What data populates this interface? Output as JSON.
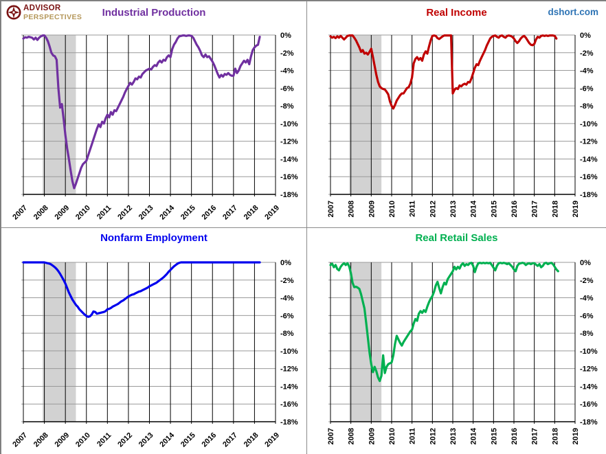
{
  "page": {
    "brand": {
      "line1": "ADVISOR",
      "line2": "PERSPECTIVES"
    },
    "watermark": "dshort.com"
  },
  "colors": {
    "industrial_production": "#7030A0",
    "real_income": "#C00000",
    "nonfarm_employment": "#0000EE",
    "real_retail_sales": "#00B050",
    "recession_band": "#D2D2D2",
    "h_gridline": "#999999",
    "v_gridline": "#000000",
    "watermark_blue": "#2E74B5",
    "logo_maroon": "#7A1212",
    "logo_gold": "#B5975A"
  },
  "chart_data": [
    {
      "type": "line",
      "title": "Industrial Production",
      "color": "#7030A0",
      "x_start": 2007,
      "x_step_months": 1,
      "x_ticks": [
        2007,
        2008,
        2009,
        2010,
        2011,
        2012,
        2013,
        2014,
        2015,
        2016,
        2017,
        2018,
        2019
      ],
      "xlim": [
        2007,
        2019
      ],
      "ylim": [
        -18,
        0
      ],
      "y_tick_labels": [
        "0%",
        "-2%",
        "-4%",
        "-6%",
        "-8%",
        "-10%",
        "-12%",
        "-14%",
        "-16%",
        "-18%"
      ],
      "x_label_rotation": 45,
      "grid": true,
      "recession_band": {
        "from": 2007.917,
        "to": 2009.5
      },
      "values": [
        -0.4,
        -0.25,
        -0.3,
        -0.2,
        -0.25,
        -0.3,
        -0.5,
        -0.3,
        -0.55,
        -0.3,
        -0.15,
        -0.05,
        -0.05,
        -0.3,
        -0.7,
        -1.3,
        -2.0,
        -2.3,
        -2.4,
        -2.8,
        -6.0,
        -8.2,
        -7.8,
        -9.5,
        -11.3,
        -12.8,
        -14.0,
        -15.3,
        -16.5,
        -17.3,
        -16.8,
        -16.2,
        -15.6,
        -15.0,
        -14.6,
        -14.4,
        -14.2,
        -13.6,
        -13.0,
        -12.4,
        -11.8,
        -11.2,
        -10.6,
        -10.1,
        -10.4,
        -9.8,
        -10.0,
        -9.4,
        -9.0,
        -9.3,
        -8.7,
        -9.0,
        -8.5,
        -8.6,
        -8.2,
        -7.8,
        -7.4,
        -7.0,
        -6.5,
        -6.1,
        -5.75,
        -5.4,
        -5.6,
        -5.3,
        -4.9,
        -5.0,
        -4.7,
        -4.8,
        -4.4,
        -4.2,
        -4.0,
        -3.9,
        -3.8,
        -3.9,
        -3.6,
        -3.4,
        -3.5,
        -3.1,
        -2.9,
        -3.1,
        -2.8,
        -2.9,
        -2.5,
        -2.3,
        -2.5,
        -1.6,
        -1.1,
        -0.8,
        -0.4,
        -0.15,
        -0.1,
        -0.05,
        -0.05,
        -0.1,
        -0.05,
        -0.05,
        -0.1,
        -0.3,
        -0.7,
        -1.1,
        -1.4,
        -1.8,
        -2.3,
        -2.5,
        -2.2,
        -2.5,
        -2.4,
        -2.7,
        -3.0,
        -3.4,
        -3.9,
        -4.4,
        -4.8,
        -4.5,
        -4.7,
        -4.4,
        -4.5,
        -4.3,
        -4.5,
        -4.6,
        -4.6,
        -3.8,
        -4.3,
        -4.0,
        -3.5,
        -3.2,
        -2.9,
        -3.1,
        -2.8,
        -3.3,
        -2.4,
        -1.7,
        -1.4,
        -1.2,
        -1.1,
        -0.2
      ]
    },
    {
      "type": "line",
      "title": "Real Income",
      "color": "#C00000",
      "x_start": 2007,
      "x_step_months": 1,
      "x_ticks": [
        2007,
        2008,
        2009,
        2010,
        2011,
        2012,
        2013,
        2014,
        2015,
        2016,
        2017,
        2018,
        2019
      ],
      "xlim": [
        2007,
        2019
      ],
      "ylim": [
        -18,
        0
      ],
      "y_tick_labels": [
        "0%",
        "-2%",
        "-4%",
        "-6%",
        "-8%",
        "-10%",
        "-12%",
        "-14%",
        "-16%",
        "-18%"
      ],
      "x_label_rotation": 90,
      "grid": true,
      "recession_band": {
        "from": 2007.917,
        "to": 2009.5
      },
      "values": [
        -0.15,
        -0.3,
        -0.2,
        -0.35,
        -0.15,
        -0.3,
        -0.1,
        -0.3,
        -0.5,
        -0.3,
        -0.1,
        -0.05,
        -0.05,
        -0.05,
        -0.3,
        -0.6,
        -1.0,
        -1.4,
        -1.9,
        -1.7,
        -2.1,
        -2.0,
        -2.2,
        -1.9,
        -1.55,
        -2.5,
        -3.5,
        -4.5,
        -5.3,
        -5.8,
        -6.0,
        -6.1,
        -6.15,
        -6.4,
        -6.7,
        -7.5,
        -8.0,
        -8.3,
        -7.9,
        -7.4,
        -7.1,
        -6.8,
        -6.6,
        -6.6,
        -6.3,
        -6.0,
        -5.9,
        -5.5,
        -4.8,
        -3.2,
        -2.7,
        -2.5,
        -2.8,
        -2.6,
        -2.9,
        -2.2,
        -1.85,
        -2.1,
        -1.3,
        -0.6,
        -0.1,
        -0.05,
        -0.1,
        -0.35,
        -0.45,
        -0.3,
        -0.15,
        -0.05,
        -0.05,
        -0.05,
        -0.05,
        -0.05,
        -6.6,
        -6.2,
        -6.0,
        -6.1,
        -5.7,
        -5.8,
        -5.6,
        -5.5,
        -5.6,
        -5.3,
        -5.35,
        -4.9,
        -4.3,
        -3.7,
        -3.3,
        -3.4,
        -2.9,
        -2.5,
        -2.1,
        -1.7,
        -1.2,
        -0.8,
        -0.4,
        -0.2,
        -0.1,
        -0.05,
        -0.2,
        -0.3,
        -0.1,
        -0.05,
        -0.2,
        -0.3,
        -0.1,
        -0.05,
        -0.1,
        -0.2,
        -0.4,
        -0.7,
        -0.9,
        -0.7,
        -0.4,
        -0.2,
        -0.1,
        -0.3,
        -0.6,
        -0.9,
        -1.1,
        -1.15,
        -1.0,
        -0.5,
        -0.2,
        -0.3,
        -0.1,
        -0.05,
        -0.1,
        -0.05,
        -0.1,
        -0.05,
        -0.05,
        -0.05,
        -0.1,
        -0.4
      ]
    },
    {
      "type": "line",
      "title": "Nonfarm Employment",
      "color": "#0000EE",
      "x_start": 2007,
      "x_step_months": 1,
      "x_ticks": [
        2007,
        2008,
        2009,
        2010,
        2011,
        2012,
        2013,
        2014,
        2015,
        2016,
        2017,
        2018,
        2019
      ],
      "xlim": [
        2007,
        2019
      ],
      "ylim": [
        -18,
        0
      ],
      "y_tick_labels": [
        "0%",
        "-2%",
        "-4%",
        "-6%",
        "-8%",
        "-10%",
        "-12%",
        "-14%",
        "-16%",
        "-18%"
      ],
      "x_label_rotation": 45,
      "grid": true,
      "recession_band": {
        "from": 2007.917,
        "to": 2009.5
      },
      "values": [
        0,
        0,
        0,
        0,
        0,
        0,
        0,
        0,
        0,
        0,
        0,
        0,
        0,
        -0.05,
        -0.1,
        -0.15,
        -0.25,
        -0.4,
        -0.55,
        -0.75,
        -1.0,
        -1.3,
        -1.65,
        -2.0,
        -2.4,
        -2.9,
        -3.4,
        -3.8,
        -4.2,
        -4.5,
        -4.8,
        -5.0,
        -5.3,
        -5.5,
        -5.7,
        -5.9,
        -6.05,
        -6.15,
        -6.1,
        -5.9,
        -5.55,
        -5.6,
        -5.8,
        -5.75,
        -5.7,
        -5.65,
        -5.6,
        -5.5,
        -5.3,
        -5.25,
        -5.15,
        -5.0,
        -4.9,
        -4.8,
        -4.7,
        -4.55,
        -4.4,
        -4.3,
        -4.15,
        -4.0,
        -3.85,
        -3.75,
        -3.65,
        -3.6,
        -3.5,
        -3.4,
        -3.3,
        -3.25,
        -3.15,
        -3.05,
        -2.95,
        -2.85,
        -2.7,
        -2.6,
        -2.5,
        -2.4,
        -2.3,
        -2.15,
        -2.0,
        -1.85,
        -1.7,
        -1.5,
        -1.3,
        -1.05,
        -0.85,
        -0.65,
        -0.45,
        -0.3,
        -0.15,
        -0.05,
        0,
        0,
        0,
        0,
        0,
        0,
        0,
        0,
        0,
        0,
        0,
        0,
        0,
        0,
        0,
        0,
        0,
        0,
        0,
        0,
        0,
        0,
        0,
        0,
        0,
        0,
        0,
        0,
        0,
        0,
        0,
        0,
        0,
        0,
        0,
        0,
        0,
        0,
        0,
        0,
        0,
        0,
        0,
        0,
        0,
        0
      ]
    },
    {
      "type": "line",
      "title": "Real Retail Sales",
      "color": "#00B050",
      "x_start": 2007,
      "x_step_months": 1,
      "x_ticks": [
        2007,
        2008,
        2009,
        2010,
        2011,
        2012,
        2013,
        2014,
        2015,
        2016,
        2017,
        2018,
        2019
      ],
      "xlim": [
        2007,
        2019
      ],
      "ylim": [
        -18,
        0
      ],
      "y_tick_labels": [
        "0%",
        "-2%",
        "-4%",
        "-6%",
        "-8%",
        "-10%",
        "-12%",
        "-14%",
        "-16%",
        "-18%"
      ],
      "x_label_rotation": 90,
      "grid": true,
      "recession_band": {
        "from": 2007.917,
        "to": 2009.5
      },
      "values": [
        -0.3,
        -0.15,
        -0.55,
        -0.3,
        -0.75,
        -0.9,
        -0.5,
        -0.25,
        -0.1,
        -0.3,
        -0.1,
        -0.45,
        -1.2,
        -2.3,
        -2.8,
        -2.75,
        -2.85,
        -3.0,
        -3.6,
        -4.4,
        -5.2,
        -6.8,
        -8.5,
        -10.2,
        -11.5,
        -12.4,
        -11.8,
        -12.3,
        -13.0,
        -13.4,
        -12.8,
        -10.5,
        -12.5,
        -11.8,
        -11.5,
        -11.4,
        -11.3,
        -10.5,
        -9.2,
        -8.3,
        -8.7,
        -9.1,
        -9.4,
        -9.0,
        -8.7,
        -8.4,
        -8.1,
        -7.8,
        -7.6,
        -6.9,
        -6.4,
        -6.6,
        -5.8,
        -5.5,
        -5.7,
        -5.4,
        -5.6,
        -5.0,
        -4.5,
        -4.1,
        -3.8,
        -3.3,
        -2.6,
        -2.2,
        -2.9,
        -3.5,
        -2.8,
        -2.3,
        -2.5,
        -1.9,
        -1.6,
        -1.3,
        -1.0,
        -0.5,
        -0.8,
        -0.5,
        -0.7,
        -0.3,
        -0.1,
        -0.4,
        -0.2,
        -0.3,
        -0.1,
        -0.05,
        -0.4,
        -1.1,
        -0.5,
        -0.1,
        -0.05,
        -0.1,
        -0.05,
        -0.1,
        -0.05,
        -0.1,
        -0.05,
        -0.3,
        -0.6,
        -0.9,
        -0.4,
        -0.1,
        -0.05,
        -0.1,
        -0.05,
        -0.1,
        -0.2,
        -0.1,
        -0.3,
        -0.5,
        -0.8,
        -1.0,
        -0.4,
        -0.15,
        -0.1,
        -0.05,
        -0.1,
        -0.3,
        -0.15,
        -0.1,
        -0.2,
        -0.1,
        -0.1,
        -0.25,
        -0.4,
        -0.2,
        -0.55,
        -0.4,
        -0.1,
        -0.05,
        -0.2,
        -0.1,
        -0.05,
        -0.2,
        -0.5,
        -0.8,
        -1.0
      ]
    }
  ]
}
